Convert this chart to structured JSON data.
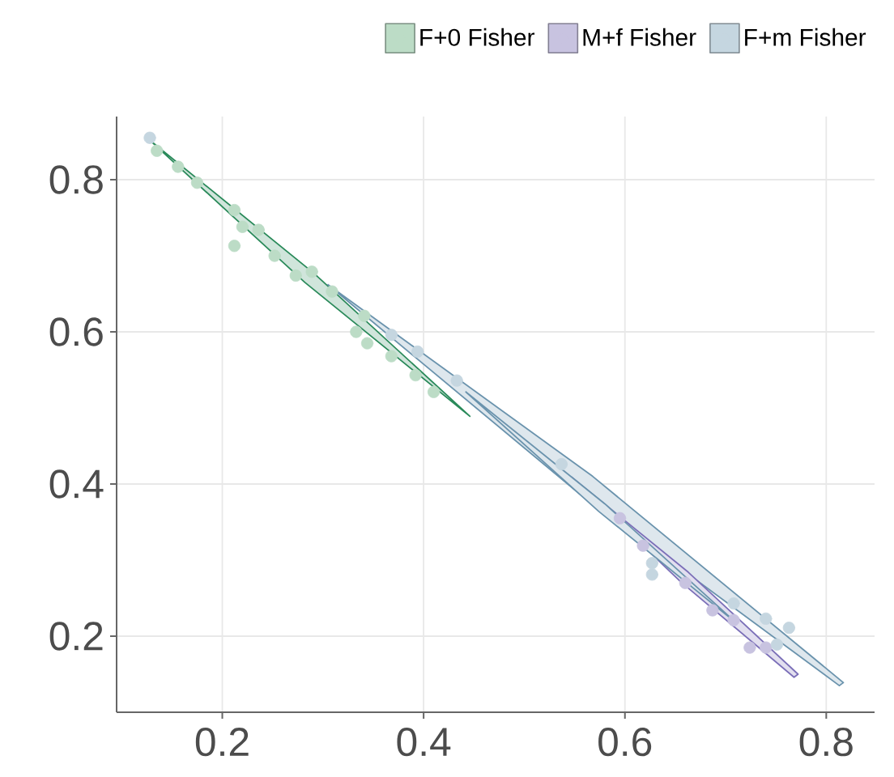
{
  "chart_data": {
    "type": "scatter",
    "xlim": [
      0.095,
      0.848
    ],
    "ylim": [
      0.1,
      0.883
    ],
    "xticks": [
      0.2,
      0.4,
      0.6,
      0.8
    ],
    "yticks": [
      0.2,
      0.4,
      0.6,
      0.8
    ],
    "grid": true,
    "legend": "top",
    "series": [
      {
        "type": "area",
        "color": "#2a8a5a",
        "marker": "none",
        "x": [
          0.127,
          0.291,
          0.446,
          0.282,
          0.127
        ],
        "values": [
          0.853,
          0.677,
          0.489,
          0.665,
          0.853
        ]
      },
      {
        "type": "area",
        "color": "#6a93ad",
        "marker": "none",
        "x": [
          0.305,
          0.568,
          0.817,
          0.813,
          0.554,
          0.305
        ],
        "values": [
          0.662,
          0.41,
          0.139,
          0.135,
          0.388,
          0.662
        ]
      },
      {
        "type": "area",
        "color": "#7b6fb8",
        "marker": "none",
        "x": [
          0.547,
          0.663,
          0.772,
          0.768,
          0.655,
          0.547
        ],
        "values": [
          0.409,
          0.284,
          0.15,
          0.146,
          0.272,
          0.409
        ]
      },
      {
        "type": "area",
        "color": "#6a93ad",
        "marker": "none",
        "x": [
          0.442,
          0.58,
          0.711,
          0.574,
          0.442
        ],
        "values": [
          0.521,
          0.374,
          0.217,
          0.364,
          0.521
        ]
      },
      {
        "name": "F+0 Fisher",
        "color": "#bcdcc6",
        "marker": "circle",
        "x": [
          0.135,
          0.156,
          0.175,
          0.212,
          0.22,
          0.212,
          0.236,
          0.252,
          0.273,
          0.289,
          0.309,
          0.333,
          0.344,
          0.368,
          0.392,
          0.41,
          0.341
        ],
        "values": [
          0.838,
          0.817,
          0.796,
          0.76,
          0.738,
          0.713,
          0.734,
          0.7,
          0.674,
          0.679,
          0.653,
          0.6,
          0.585,
          0.568,
          0.543,
          0.521,
          0.621
        ]
      },
      {
        "name": "M+f Fisher",
        "color": "#c8c3e0",
        "marker": "circle",
        "x": [
          0.595,
          0.618,
          0.66,
          0.687,
          0.708,
          0.724,
          0.74
        ],
        "values": [
          0.355,
          0.319,
          0.27,
          0.234,
          0.221,
          0.185,
          0.185
        ]
      },
      {
        "name": "F+m Fisher",
        "color": "#c5d6e0",
        "marker": "circle",
        "x": [
          0.128,
          0.368,
          0.394,
          0.433,
          0.537,
          0.627,
          0.627,
          0.708,
          0.74,
          0.763,
          0.751
        ],
        "values": [
          0.855,
          0.596,
          0.574,
          0.536,
          0.426,
          0.281,
          0.296,
          0.243,
          0.223,
          0.211,
          0.189
        ]
      }
    ]
  }
}
